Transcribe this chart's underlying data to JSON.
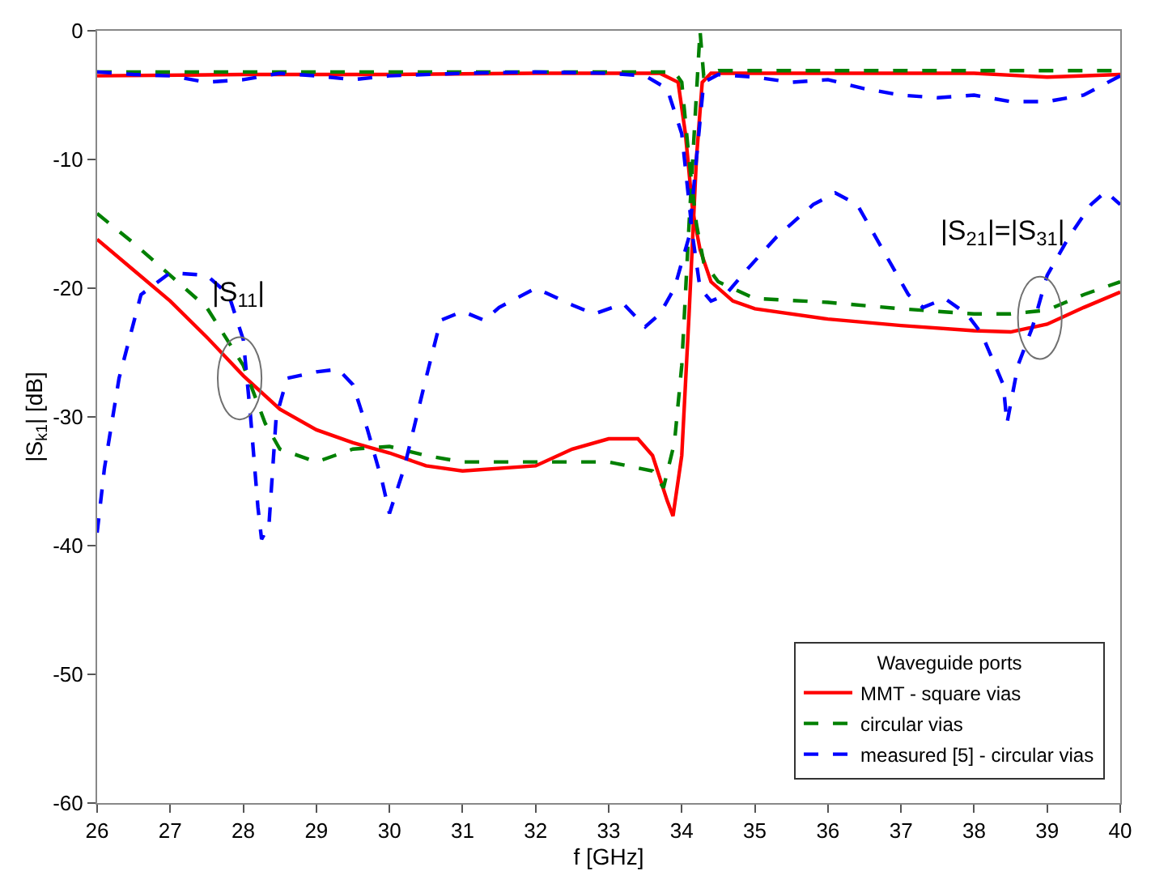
{
  "chart_data": {
    "type": "line",
    "xlabel": "f [GHz]",
    "ylabel": "|S$_{k1}$| [dB]",
    "legend_title": "Waveguide ports",
    "xlim": [
      26,
      40
    ],
    "xticks": [
      26,
      27,
      28,
      29,
      30,
      31,
      32,
      33,
      34,
      35,
      36,
      37,
      38,
      39,
      40
    ],
    "ylim": [
      -60,
      0
    ],
    "yticks": [
      -60,
      -50,
      -40,
      -30,
      -20,
      -10,
      0
    ],
    "legend": "bottom right",
    "marker": "none",
    "annotations": [
      {
        "text": "|S$_{11}$|",
        "x": 27.95,
        "y": -27
      },
      {
        "text": "|S$_{21}$|=|S$_{31}$|",
        "x": 38.9,
        "y": -22.3
      }
    ],
    "series": [
      {
        "name": "MMT - square vias",
        "color": "#ff0000",
        "line_style": "solid",
        "x": [
          26,
          26.5,
          27,
          27.5,
          28,
          28.5,
          29,
          29.5,
          30,
          30.5,
          31,
          32,
          32.5,
          33,
          33.4,
          33.6,
          33.8,
          33.88,
          34.0,
          34.1,
          34.2,
          34.28,
          34.4,
          35,
          38,
          39,
          40
        ],
        "values": [
          -16.2,
          -18.6,
          -21,
          -23.8,
          -26.8,
          -29.4,
          -31,
          -32,
          -32.8,
          -33.8,
          -34.2,
          -33.8,
          -32.5,
          -31.7,
          -31.7,
          -33,
          -36.5,
          -37.7,
          -33,
          -22,
          -10,
          -4,
          -3.3,
          -3.3,
          -3.3,
          -3.6,
          -3.4
        ]
      },
      {
        "color": "#ff0000",
        "line_style": "solid",
        "x": [
          26,
          28,
          30,
          32,
          33.7,
          33.95,
          34.05,
          34.15,
          34.25,
          34.4,
          34.7,
          35,
          36,
          37,
          38,
          38.5,
          39,
          39.5,
          40
        ],
        "values": [
          -3.5,
          -3.4,
          -3.4,
          -3.3,
          -3.3,
          -4,
          -8,
          -14,
          -17,
          -19.5,
          -21,
          -21.6,
          -22.4,
          -22.9,
          -23.3,
          -23.4,
          -22.8,
          -21.5,
          -20.3
        ]
      },
      {
        "name": "circular vias",
        "color": "#008000",
        "line_style": "dashed",
        "x": [
          26,
          26.5,
          27,
          27.5,
          28,
          28.3,
          28.5,
          29,
          29.5,
          30,
          30.5,
          31,
          32,
          33,
          33.6,
          33.75,
          33.9,
          34.0,
          34.1,
          34.2,
          34.25,
          34.3,
          34.5,
          40
        ],
        "values": [
          -14.2,
          -16.5,
          -19,
          -21.5,
          -26,
          -30.5,
          -32.5,
          -33.5,
          -32.5,
          -32.3,
          -33,
          -33.5,
          -33.5,
          -33.5,
          -34.2,
          -35.5,
          -32,
          -26,
          -15,
          -5,
          0,
          -3.5,
          -3.1,
          -3.1
        ]
      },
      {
        "color": "#008000",
        "line_style": "dashed",
        "x": [
          26,
          33.9,
          34.0,
          34.1,
          34.2,
          34.3,
          34.5,
          35,
          36,
          37,
          38,
          38.5,
          39,
          39.5,
          40
        ],
        "values": [
          -3.2,
          -3.2,
          -4,
          -10,
          -15,
          -18,
          -19.5,
          -20.8,
          -21.1,
          -21.6,
          -22,
          -22,
          -21.7,
          -20.5,
          -19.5
        ]
      },
      {
        "name": "measured [5] - circular vias",
        "color": "#0000ff",
        "line_style": "dashed",
        "x": [
          26,
          26.1,
          26.3,
          26.6,
          27,
          27.5,
          27.8,
          28,
          28.1,
          28.2,
          28.25,
          28.35,
          28.45,
          28.6,
          29,
          29.3,
          29.5,
          29.7,
          29.9,
          30.0,
          30.2,
          30.5,
          30.7,
          31,
          31.3,
          31.5,
          32,
          32.5,
          32.8,
          33.2,
          33.5,
          33.7,
          33.9,
          34.1,
          34.2,
          34.3,
          34.5,
          35,
          35.5,
          36,
          36.5,
          37,
          37.5,
          38,
          38.5,
          39,
          39.5,
          40
        ],
        "values": [
          -39,
          -34,
          -27,
          -20.5,
          -18.8,
          -19,
          -20.5,
          -24,
          -30,
          -37,
          -39.5,
          -38.5,
          -30,
          -27,
          -26.5,
          -26.3,
          -27.5,
          -31,
          -35,
          -37.5,
          -34,
          -27,
          -22.5,
          -21.8,
          -22.5,
          -21.5,
          -20,
          -21.3,
          -22,
          -21.2,
          -23,
          -22,
          -20,
          -16,
          -10,
          -4,
          -3.4,
          -3.6,
          -4,
          -3.8,
          -4.5,
          -5,
          -5.2,
          -5,
          -5.5,
          -5.5,
          -5,
          -3.5
        ]
      },
      {
        "color": "#0000ff",
        "line_style": "dashed",
        "x": [
          26,
          26.5,
          27,
          27.5,
          28,
          28.5,
          29,
          29.5,
          30,
          31,
          32,
          33,
          33.5,
          33.8,
          34.0,
          34.15,
          34.25,
          34.4,
          34.6,
          34.9,
          35.3,
          35.8,
          36.1,
          36.4,
          36.8,
          37.1,
          37.3,
          37.6,
          37.9,
          38.1,
          38.4,
          38.45,
          38.6,
          38.8,
          39.0,
          39.3,
          39.6,
          39.8,
          40
        ],
        "values": [
          -3.2,
          -3.4,
          -3.5,
          -4,
          -3.8,
          -3.3,
          -3.5,
          -3.8,
          -3.5,
          -3.3,
          -3.2,
          -3.3,
          -3.5,
          -4.5,
          -8,
          -16,
          -20,
          -21,
          -20.5,
          -18.5,
          -16,
          -13.5,
          -12.6,
          -13.5,
          -17.5,
          -20.5,
          -21.5,
          -20.8,
          -22,
          -23.5,
          -27.5,
          -30.5,
          -26,
          -23,
          -19,
          -16,
          -13.5,
          -12.5,
          -13.5
        ]
      }
    ]
  }
}
